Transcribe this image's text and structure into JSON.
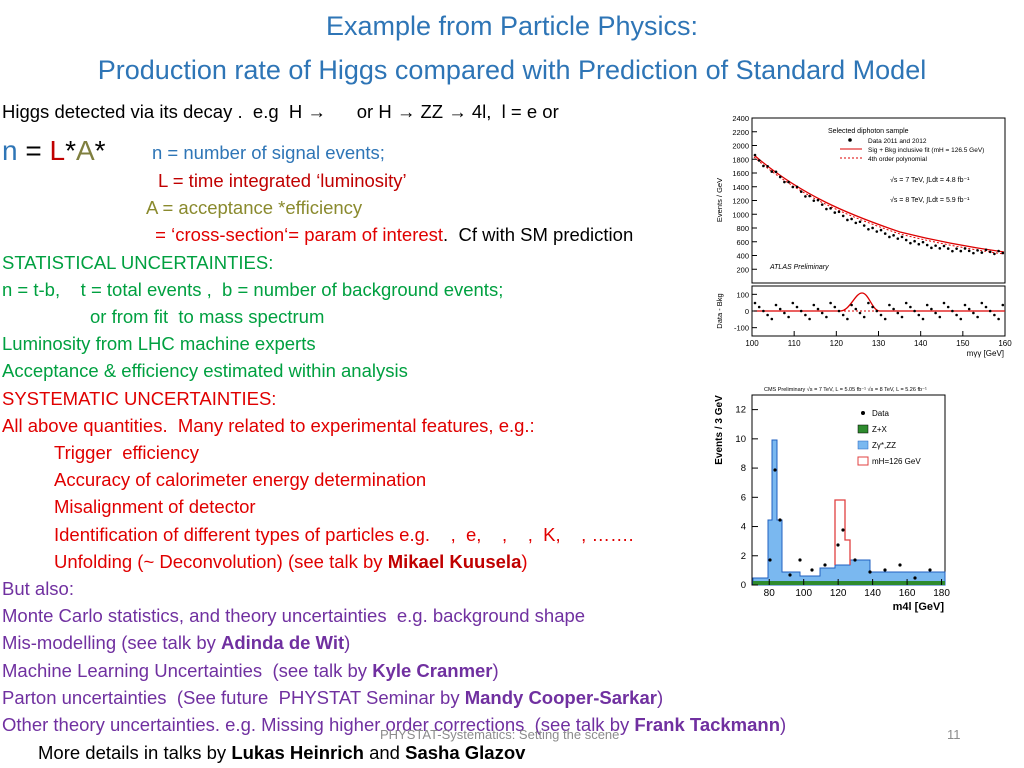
{
  "title": [
    "Example from Particle Physics:",
    "Production rate of Higgs compared with Prediction of Standard Model"
  ],
  "lines": [
    {
      "x": 2,
      "y": 101,
      "size": 18.5,
      "segments": [
        {
          "text": "Higgs detected via its decay .  e.g  H →      or H → ZZ → 4l,  l = e or",
          "color": "#000000"
        }
      ]
    },
    {
      "x": 2,
      "y": 134,
      "size": 28,
      "segments": [
        {
          "text": "n",
          "color": "#2e75b6"
        },
        {
          "text": " = ",
          "color": "#000000"
        },
        {
          "text": "L",
          "color": "#c00000"
        },
        {
          "text": "*",
          "color": "#000000"
        },
        {
          "text": "A",
          "color": "#7f7f3f"
        },
        {
          "text": "*",
          "color": "#000000"
        }
      ]
    },
    {
      "x": 152,
      "y": 142,
      "size": 18.5,
      "segments": [
        {
          "text": "n = number of signal events;",
          "color": "#2e75b6"
        }
      ]
    },
    {
      "x": 158,
      "y": 170,
      "size": 18.5,
      "segments": [
        {
          "text": "L = time integrated ‘luminosity’",
          "color": "#c00000"
        }
      ]
    },
    {
      "x": 146,
      "y": 197,
      "size": 18.5,
      "segments": [
        {
          "text": "A = acceptance *efficiency",
          "color": "#8a8a2e"
        }
      ]
    },
    {
      "x": 150,
      "y": 224,
      "size": 18.5,
      "segments": [
        {
          "text": " = ‘cross-section‘= param of interest",
          "color": "#e00000"
        },
        {
          "text": ".  Cf with SM prediction",
          "color": "#000000"
        }
      ]
    },
    {
      "x": 2,
      "y": 252,
      "size": 18.5,
      "segments": [
        {
          "text": "STATISTICAL UNCERTAINTIES:",
          "color": "#00a040"
        }
      ]
    },
    {
      "x": 2,
      "y": 279,
      "size": 18.5,
      "segments": [
        {
          "text": "n = t-b,    t = total events ,  b = number of background events;",
          "color": "#00a040"
        }
      ]
    },
    {
      "x": 90,
      "y": 306,
      "size": 18.5,
      "segments": [
        {
          "text": "or from fit  to mass spectrum",
          "color": "#00a040"
        }
      ]
    },
    {
      "x": 2,
      "y": 333,
      "size": 18.5,
      "segments": [
        {
          "text": "Luminosity from LHC machine experts",
          "color": "#00a040"
        }
      ]
    },
    {
      "x": 2,
      "y": 360,
      "size": 18.5,
      "segments": [
        {
          "text": "Acceptance & efficiency estimated within analysis",
          "color": "#00a040"
        }
      ]
    },
    {
      "x": 2,
      "y": 388,
      "size": 18.5,
      "segments": [
        {
          "text": "SYSTEMATIC UNCERTAINTIES:",
          "color": "#e00000"
        }
      ]
    },
    {
      "x": 2,
      "y": 415,
      "size": 18.5,
      "segments": [
        {
          "text": "All above quantities.  Many related to experimental features, e.g.:",
          "color": "#e00000"
        }
      ]
    },
    {
      "x": 54,
      "y": 442,
      "size": 18.5,
      "segments": [
        {
          "text": "Trigger  efficiency",
          "color": "#e00000"
        }
      ]
    },
    {
      "x": 54,
      "y": 469,
      "size": 18.5,
      "segments": [
        {
          "text": "Accuracy of calorimeter energy determination",
          "color": "#e00000"
        }
      ]
    },
    {
      "x": 54,
      "y": 496,
      "size": 18.5,
      "segments": [
        {
          "text": "Misalignment of detector",
          "color": "#e00000"
        }
      ]
    },
    {
      "x": 54,
      "y": 524,
      "size": 18.5,
      "segments": [
        {
          "text": "Identification of different types of particles e.g.    ,  e,    ,    ,  K,    , …….",
          "color": "#e00000"
        }
      ]
    },
    {
      "x": 54,
      "y": 551,
      "size": 18.5,
      "segments": [
        {
          "text": "Unfolding (~ Deconvolution) (see talk by ",
          "color": "#e00000"
        },
        {
          "text": "Mikael Kuusela",
          "color": "#c00000",
          "bold": true
        },
        {
          "text": ")",
          "color": "#e00000"
        }
      ]
    },
    {
      "x": 2,
      "y": 578,
      "size": 18.5,
      "segments": [
        {
          "text": "But also:",
          "color": "#7030a0"
        }
      ]
    },
    {
      "x": 2,
      "y": 605,
      "size": 18.5,
      "segments": [
        {
          "text": "Monte Carlo statistics, and theory uncertainties  e.g. background shape",
          "color": "#7030a0"
        }
      ]
    },
    {
      "x": 2,
      "y": 632,
      "size": 18.5,
      "segments": [
        {
          "text": "Mis-modelling (see talk by ",
          "color": "#7030a0"
        },
        {
          "text": "Adinda de Wit",
          "color": "#7030a0",
          "bold": true
        },
        {
          "text": ")",
          "color": "#7030a0"
        }
      ]
    },
    {
      "x": 2,
      "y": 660,
      "size": 18.5,
      "segments": [
        {
          "text": "Machine Learning Uncertainties  (see talk by ",
          "color": "#7030a0"
        },
        {
          "text": "Kyle Cranmer",
          "color": "#7030a0",
          "bold": true
        },
        {
          "text": ")",
          "color": "#7030a0"
        }
      ]
    },
    {
      "x": 2,
      "y": 687,
      "size": 18.5,
      "segments": [
        {
          "text": "Parton uncertainties  (See future  PHYSTAT Seminar by ",
          "color": "#7030a0"
        },
        {
          "text": "Mandy Cooper-Sarkar",
          "color": "#7030a0",
          "bold": true
        },
        {
          "text": ")",
          "color": "#7030a0"
        }
      ]
    },
    {
      "x": 2,
      "y": 714,
      "size": 18.5,
      "segments": [
        {
          "text": "Other theory uncertainties. e.g. Missing higher order corrections  (see talk by ",
          "color": "#7030a0"
        },
        {
          "text": "Frank Tackmann",
          "color": "#7030a0",
          "bold": true
        },
        {
          "text": ")",
          "color": "#7030a0"
        }
      ]
    },
    {
      "x": 38,
      "y": 742,
      "size": 18.5,
      "segments": [
        {
          "text": "More details in talks by ",
          "color": "#000000"
        },
        {
          "text": "Lukas Heinrich",
          "color": "#000000",
          "bold": true
        },
        {
          "text": " and ",
          "color": "#000000"
        },
        {
          "text": "Sasha Glazov",
          "color": "#000000",
          "bold": true
        }
      ]
    }
  ],
  "footer": {
    "text": "PHYSTAT-Systematics: Setting the scene",
    "page": "11"
  },
  "figures": [
    {
      "name": "atlas",
      "ylabel": "Events / GeV",
      "xlabel": "mγγ [GeV]",
      "ratio_label": "Data - Bkg",
      "legend": [
        "Selected diphoton sample",
        "Data 2011 and 2012",
        "Sig + Bkg inclusive fit (mH = 126.5 GeV)",
        "4th order polynomial"
      ],
      "energy": [
        "√s = 7 TeV, ∫Ldt = 4.8 fb⁻¹",
        "√s = 8 TeV, ∫Ldt = 5.9 fb⁻¹"
      ],
      "experiment": "ATLAS Preliminary",
      "xlim": [
        100,
        160
      ],
      "xticks": [
        100,
        110,
        120,
        130,
        140,
        150,
        160
      ],
      "ylim": [
        0,
        2400
      ],
      "yticks": [
        200,
        400,
        600,
        800,
        1000,
        1200,
        1400,
        1600,
        1800,
        2000,
        2200,
        2400
      ],
      "ratio_ylim": [
        -150,
        150
      ],
      "ratio_yticks": [
        -100,
        0,
        100
      ]
    },
    {
      "name": "cms",
      "ylabel": "Events / 3 GeV",
      "xlabel": "m4l [GeV]",
      "header": "CMS Preliminary  √s = 7 TeV, L = 5.05 fb⁻¹  √s = 8 TeV, L = 5.26 fb⁻¹",
      "legend": [
        "Data",
        "Z+X",
        "Zγ*,ZZ",
        "mH=126 GeV"
      ],
      "xlim": [
        70,
        182
      ],
      "xticks": [
        80,
        100,
        120,
        140,
        160,
        180
      ],
      "ylim": [
        0,
        13
      ],
      "yticks": [
        0,
        2,
        4,
        6,
        8,
        10,
        12
      ]
    }
  ]
}
